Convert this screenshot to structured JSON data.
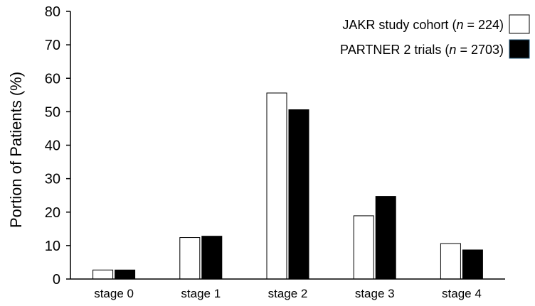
{
  "chart_data": {
    "type": "bar",
    "categories": [
      "stage 0",
      "stage 1",
      "stage 2",
      "stage 3",
      "stage 4"
    ],
    "series": [
      {
        "name": "JAKR study cohort (n = 224)",
        "name_prefix": "JAKR study cohort (",
        "name_n": "n",
        "name_suffix": " = 224)",
        "color": "#ffffff",
        "values": [
          2.7,
          12.4,
          55.6,
          18.9,
          10.6
        ]
      },
      {
        "name": "PARTNER 2 trials (n = 2703)",
        "name_prefix": "PARTNER 2 trials (",
        "name_n": "n",
        "name_suffix": " = 2703)",
        "color": "#000000",
        "values": [
          2.7,
          12.8,
          50.6,
          24.7,
          8.7
        ]
      }
    ],
    "ylabel": "Portion of Patients (%)",
    "ylim": [
      0,
      80
    ],
    "yticks": [
      0,
      10,
      20,
      30,
      40,
      50,
      60,
      70,
      80
    ],
    "grid": false,
    "legend": "top-right"
  }
}
